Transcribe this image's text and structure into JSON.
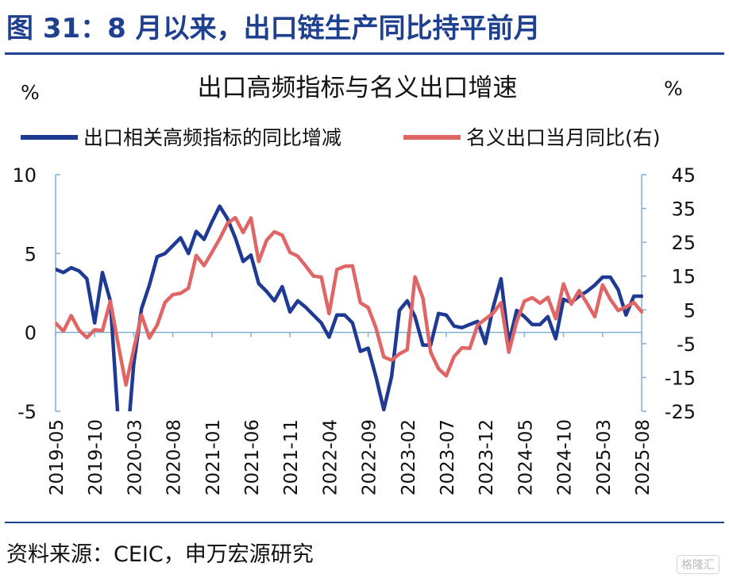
{
  "figure": {
    "title": "图 31：8 月以来，出口链生产同比持平前月",
    "source": "资料来源：CEIC，申万宏源研究",
    "watermark": "格隆汇"
  },
  "chart_data": {
    "type": "line",
    "title": "出口高频指标与名义出口增速",
    "left_axis_unit": "%",
    "right_axis_unit": "%",
    "legend_placement": "top",
    "grid": false,
    "x_tick_labels": [
      "2019-05",
      "2019-10",
      "2020-03",
      "2020-08",
      "2021-01",
      "2021-06",
      "2021-11",
      "2022-04",
      "2022-09",
      "2023-02",
      "2023-07",
      "2023-12",
      "2024-05",
      "2024-10",
      "2025-03",
      "2025-08"
    ],
    "x_range": [
      "2019-05",
      "2025-08"
    ],
    "left_axis": {
      "ylim": [
        -5,
        10
      ],
      "ticks": [
        -5,
        0,
        5,
        10
      ]
    },
    "right_axis": {
      "ylim": [
        -25,
        45
      ],
      "ticks": [
        -25,
        -15,
        -5,
        5,
        15,
        25,
        35,
        45
      ]
    },
    "colors": {
      "series1": "#1f3a93",
      "series2": "#e06666",
      "axis": "#7fb0d8"
    },
    "series": [
      {
        "name": "出口相关高频指标的同比增减",
        "axis": "left",
        "points": [
          [
            "2019-05",
            4.0
          ],
          [
            "2019-06",
            3.8
          ],
          [
            "2019-07",
            4.1
          ],
          [
            "2019-08",
            3.9
          ],
          [
            "2019-09",
            3.4
          ],
          [
            "2019-10",
            0.6
          ],
          [
            "2019-11",
            3.8
          ],
          [
            "2019-12",
            2.0
          ],
          [
            "2020-01",
            -5.5
          ],
          [
            "2020-02",
            -8.0
          ],
          [
            "2020-03",
            -2.0
          ],
          [
            "2020-04",
            1.5
          ],
          [
            "2020-05",
            3.0
          ],
          [
            "2020-06",
            4.8
          ],
          [
            "2020-07",
            5.0
          ],
          [
            "2020-08",
            5.5
          ],
          [
            "2020-09",
            6.0
          ],
          [
            "2020-10",
            5.0
          ],
          [
            "2020-11",
            6.4
          ],
          [
            "2020-12",
            5.9
          ],
          [
            "2021-01",
            7.0
          ],
          [
            "2021-02",
            8.0
          ],
          [
            "2021-03",
            7.2
          ],
          [
            "2021-04",
            6.0
          ],
          [
            "2021-05",
            4.5
          ],
          [
            "2021-06",
            4.9
          ],
          [
            "2021-07",
            3.1
          ],
          [
            "2021-08",
            2.6
          ],
          [
            "2021-09",
            2.0
          ],
          [
            "2021-10",
            2.9
          ],
          [
            "2021-11",
            1.3
          ],
          [
            "2021-12",
            2.0
          ],
          [
            "2022-01",
            1.6
          ],
          [
            "2022-02",
            1.1
          ],
          [
            "2022-03",
            0.6
          ],
          [
            "2022-04",
            -0.3
          ],
          [
            "2022-05",
            1.1
          ],
          [
            "2022-06",
            1.1
          ],
          [
            "2022-07",
            0.6
          ],
          [
            "2022-08",
            -1.2
          ],
          [
            "2022-09",
            -1.0
          ],
          [
            "2022-10",
            -2.8
          ],
          [
            "2022-11",
            -4.9
          ],
          [
            "2022-12",
            -2.8
          ],
          [
            "2023-01",
            1.4
          ],
          [
            "2023-02",
            2.0
          ],
          [
            "2023-03",
            1.0
          ],
          [
            "2023-04",
            -0.8
          ],
          [
            "2023-05",
            -0.8
          ],
          [
            "2023-06",
            1.2
          ],
          [
            "2023-07",
            1.1
          ],
          [
            "2023-08",
            0.4
          ],
          [
            "2023-09",
            0.3
          ],
          [
            "2023-10",
            0.5
          ],
          [
            "2023-11",
            0.7
          ],
          [
            "2023-12",
            -0.7
          ],
          [
            "2024-01",
            1.6
          ],
          [
            "2024-02",
            3.4
          ],
          [
            "2024-03",
            -0.7
          ],
          [
            "2024-04",
            1.4
          ],
          [
            "2024-05",
            1.0
          ],
          [
            "2024-06",
            0.5
          ],
          [
            "2024-07",
            0.5
          ],
          [
            "2024-08",
            1.0
          ],
          [
            "2024-09",
            -0.4
          ],
          [
            "2024-10",
            2.1
          ],
          [
            "2024-11",
            1.9
          ],
          [
            "2024-12",
            2.3
          ],
          [
            "2025-01",
            2.6
          ],
          [
            "2025-02",
            3.0
          ],
          [
            "2025-03",
            3.5
          ],
          [
            "2025-04",
            3.5
          ],
          [
            "2025-05",
            2.7
          ],
          [
            "2025-06",
            1.1
          ],
          [
            "2025-07",
            2.3
          ],
          [
            "2025-08",
            2.3
          ]
        ]
      },
      {
        "name": "名义出口当月同比(右)",
        "axis": "right",
        "points": [
          [
            "2019-05",
            1.1
          ],
          [
            "2019-06",
            -1.3
          ],
          [
            "2019-07",
            3.3
          ],
          [
            "2019-08",
            -1.0
          ],
          [
            "2019-09",
            -3.2
          ],
          [
            "2019-10",
            -0.9
          ],
          [
            "2019-11",
            -1.1
          ],
          [
            "2019-12",
            7.6
          ],
          [
            "2020-01",
            -5.0
          ],
          [
            "2020-02",
            -17.2
          ],
          [
            "2020-03",
            -6.6
          ],
          [
            "2020-04",
            3.5
          ],
          [
            "2020-05",
            -3.3
          ],
          [
            "2020-06",
            0.5
          ],
          [
            "2020-07",
            7.2
          ],
          [
            "2020-08",
            9.5
          ],
          [
            "2020-09",
            9.9
          ],
          [
            "2020-10",
            11.4
          ],
          [
            "2020-11",
            21.1
          ],
          [
            "2020-12",
            18.1
          ],
          [
            "2021-01",
            22.0
          ],
          [
            "2021-02",
            26.0
          ],
          [
            "2021-03",
            30.6
          ],
          [
            "2021-04",
            32.3
          ],
          [
            "2021-05",
            27.9
          ],
          [
            "2021-06",
            32.2
          ],
          [
            "2021-07",
            19.3
          ],
          [
            "2021-08",
            25.6
          ],
          [
            "2021-09",
            28.1
          ],
          [
            "2021-10",
            27.1
          ],
          [
            "2021-11",
            22.0
          ],
          [
            "2021-12",
            20.9
          ],
          [
            "2022-01",
            18.0
          ],
          [
            "2022-02",
            15.0
          ],
          [
            "2022-03",
            14.7
          ],
          [
            "2022-04",
            3.9
          ],
          [
            "2022-05",
            16.9
          ],
          [
            "2022-06",
            17.9
          ],
          [
            "2022-07",
            18.0
          ],
          [
            "2022-08",
            7.1
          ],
          [
            "2022-09",
            5.7
          ],
          [
            "2022-10",
            -0.3
          ],
          [
            "2022-11",
            -8.9
          ],
          [
            "2022-12",
            -9.9
          ],
          [
            "2023-01",
            -8.0
          ],
          [
            "2023-02",
            -6.8
          ],
          [
            "2023-03",
            14.8
          ],
          [
            "2023-04",
            8.5
          ],
          [
            "2023-05",
            -7.5
          ],
          [
            "2023-06",
            -12.4
          ],
          [
            "2023-07",
            -14.5
          ],
          [
            "2023-08",
            -8.8
          ],
          [
            "2023-09",
            -6.2
          ],
          [
            "2023-10",
            -6.4
          ],
          [
            "2023-11",
            0.5
          ],
          [
            "2023-12",
            2.3
          ],
          [
            "2024-01",
            4.0
          ],
          [
            "2024-02",
            7.1
          ],
          [
            "2024-03",
            -7.5
          ],
          [
            "2024-04",
            1.5
          ],
          [
            "2024-05",
            7.6
          ],
          [
            "2024-06",
            8.6
          ],
          [
            "2024-07",
            7.0
          ],
          [
            "2024-08",
            8.7
          ],
          [
            "2024-09",
            2.4
          ],
          [
            "2024-10",
            12.7
          ],
          [
            "2024-11",
            6.7
          ],
          [
            "2024-12",
            10.7
          ],
          [
            "2025-01",
            7.0
          ],
          [
            "2025-02",
            3.0
          ],
          [
            "2025-03",
            12.4
          ],
          [
            "2025-04",
            8.1
          ],
          [
            "2025-05",
            4.8
          ],
          [
            "2025-06",
            5.9
          ],
          [
            "2025-07",
            7.2
          ],
          [
            "2025-08",
            4.4
          ]
        ]
      }
    ]
  }
}
